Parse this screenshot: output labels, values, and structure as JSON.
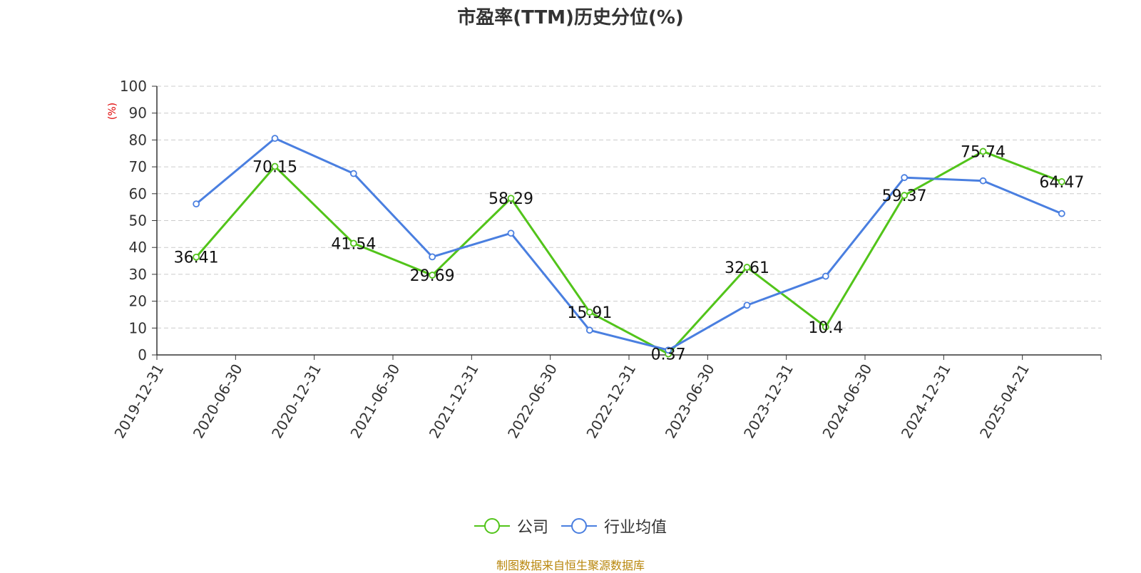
{
  "chart_data": {
    "type": "line",
    "title": "市盈率(TTM)历史分位(%)",
    "ylabel": "(%)",
    "xlabel": "",
    "ylim": [
      0,
      100
    ],
    "yticks": [
      0,
      10,
      20,
      30,
      40,
      50,
      60,
      70,
      80,
      90,
      100
    ],
    "grid": true,
    "legend_position": "bottom-center",
    "categories": [
      "2019-12-31",
      "2020-06-30",
      "2020-12-31",
      "2021-06-30",
      "2021-12-31",
      "2022-06-30",
      "2022-12-31",
      "2023-06-30",
      "2023-12-31",
      "2024-06-30",
      "2024-12-31",
      "2025-04-21"
    ],
    "series": [
      {
        "name": "公司",
        "color": "#52c41a",
        "show_labels": true,
        "values": [
          36.41,
          70.15,
          41.54,
          29.69,
          58.29,
          15.91,
          0.37,
          32.61,
          10.4,
          59.37,
          75.74,
          64.47
        ]
      },
      {
        "name": "行业均值",
        "color": "#4a7fe0",
        "show_labels": false,
        "values": [
          56.2,
          80.6,
          67.5,
          36.5,
          45.3,
          9.2,
          1.8,
          18.5,
          29.3,
          66.0,
          64.8,
          52.6
        ]
      }
    ]
  },
  "source_text": "制图数据来自恒生聚源数据库"
}
